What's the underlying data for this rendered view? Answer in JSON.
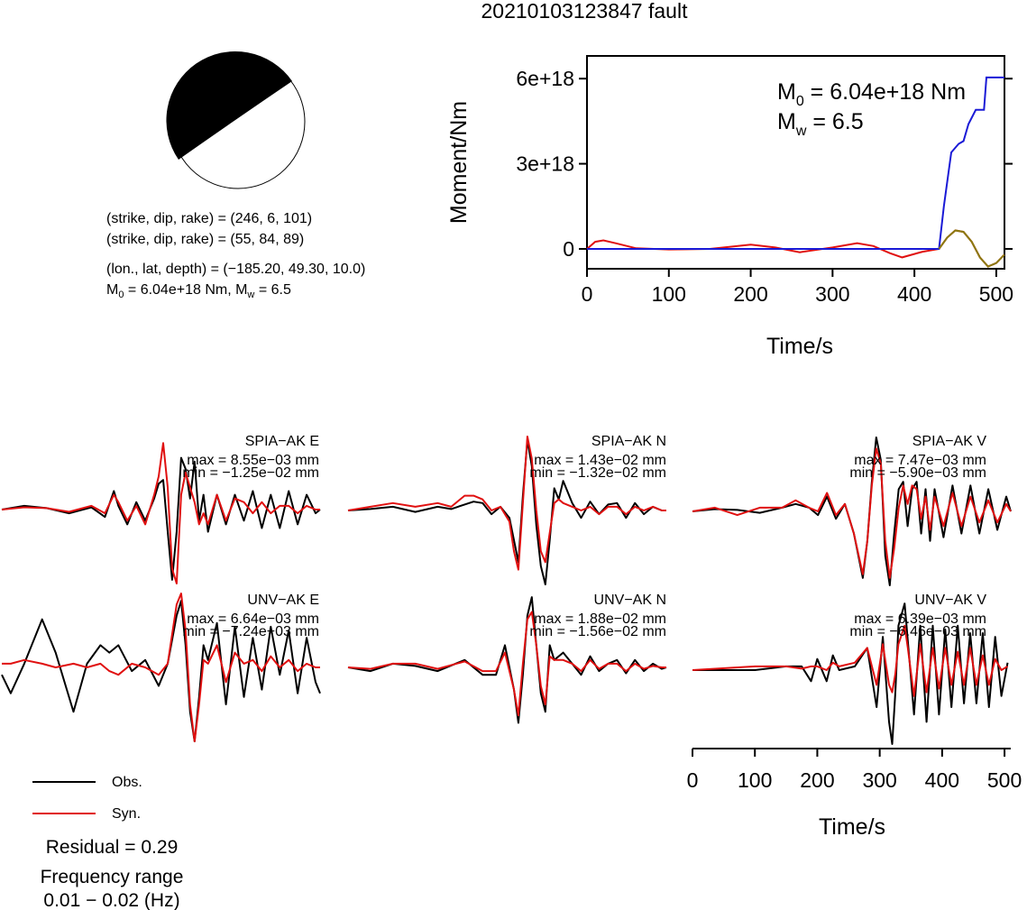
{
  "title": "20210103123847 fault",
  "focal": {
    "plane1": "(strike, dip, rake) = (246, 6, 101)",
    "plane2": "(strike, dip, rake) = (55, 84, 89)",
    "location": "(lon., lat, depth) = (−185.20, 49.30, 10.0)",
    "moment_prefix": "M",
    "moment_sub": "0",
    "moment_mid": " = 6.04e+18 Nm, M",
    "moment_sub2": "w",
    "moment_end": " = 6.5"
  },
  "moment_plot": {
    "ylabel": "Moment/Nm",
    "xlabel": "Time/s",
    "m0_prefix": "M",
    "m0_sub": "0",
    "m0_value": " = 6.04e+18 Nm",
    "mw_prefix": "M",
    "mw_sub": "w",
    "mw_value": " = 6.5"
  },
  "waveform_xlabel": "Time/s",
  "legend": {
    "obs": "Obs.",
    "syn": "Syn."
  },
  "residual": "Residual = 0.29",
  "freq_title": "Frequency range",
  "freq_value": "0.01 − 0.02 (Hz)",
  "colors": {
    "observed": "#000000",
    "synthetic": "#e01010",
    "cumulative": "#1a1ad6",
    "rate": "#8a7a10"
  },
  "chart_data": [
    {
      "type": "line",
      "title": "",
      "xlabel": "Time/s",
      "ylabel": "Moment/Nm",
      "xlim": [
        0,
        510
      ],
      "ylim": [
        -7e+17,
        6.8e+18
      ],
      "x_ticks": [
        0,
        100,
        200,
        300,
        400,
        500
      ],
      "y_ticks": [
        0,
        3e+18,
        6e+18
      ],
      "y_tick_labels": [
        "0",
        "3e+18",
        "6e+18"
      ],
      "series": [
        {
          "color": "#1a1ad6",
          "x": [
            0,
            430,
            436,
            445,
            454,
            460,
            466,
            475,
            480,
            485,
            488,
            495,
            510
          ],
          "y": [
            0,
            0,
            1.5e+18,
            3.4e+18,
            3.7e+18,
            3.8e+18,
            4.4e+18,
            4.9e+18,
            4.9e+18,
            4.9e+18,
            6.04e+18,
            6.04e+18,
            6.04e+18
          ]
        },
        {
          "color": "#e01010",
          "x": [
            0,
            10,
            20,
            35,
            60,
            100,
            150,
            200,
            230,
            260,
            300,
            330,
            350,
            370,
            385,
            410,
            430,
            440,
            450,
            460,
            470,
            480,
            490,
            500,
            510
          ],
          "y": [
            0,
            2.5e+17,
            3e+17,
            2e+17,
            2e+16,
            -2e+16,
            0,
            1.5e+17,
            5e+16,
            -1.2e+17,
            5e+16,
            2e+17,
            1e+17,
            -1.5e+17,
            -3e+17,
            -1e+17,
            0,
            4e+17,
            6.5e+17,
            6e+17,
            2.5e+17,
            -3e+17,
            -6.2e+17,
            -5e+17,
            -2e+17
          ]
        }
      ]
    },
    {
      "type": "line",
      "title": "SPIA−AK E",
      "max": "max = 8.55e−03 mm",
      "min": "min = −1.25e−02 mm",
      "x": [
        0,
        25,
        50,
        75,
        100,
        115,
        125,
        130,
        140,
        150,
        160,
        170,
        175,
        180,
        185,
        190,
        195,
        200,
        205,
        210,
        215,
        220,
        225,
        230,
        240,
        250,
        260,
        270,
        280,
        290,
        300,
        310,
        320,
        330,
        340,
        350,
        355
      ],
      "series": [
        {
          "name": "Obs.",
          "y": [
            0,
            0.05,
            0.02,
            -0.05,
            0.03,
            -0.1,
            0.25,
            0.05,
            -0.2,
            0.1,
            -0.15,
            0.15,
            0.35,
            0.4,
            -0.3,
            -0.95,
            -0.3,
            0.7,
            0.55,
            0.15,
            0.65,
            -0.15,
            0.2,
            -0.3,
            0.2,
            -0.2,
            0.2,
            -0.15,
            0.25,
            -0.25,
            0.2,
            -0.25,
            0.25,
            -0.2,
            0.2,
            -0.05,
            0
          ]
        },
        {
          "name": "Syn.",
          "y": [
            0,
            0.03,
            0.02,
            -0.03,
            0.05,
            -0.05,
            0.2,
            0.1,
            -0.15,
            0.05,
            -0.2,
            0.2,
            0.45,
            0.9,
            0.3,
            -0.8,
            -1.0,
            0.2,
            0.5,
            0.3,
            0.1,
            -0.2,
            -0.05,
            -0.2,
            0.2,
            -0.15,
            0.15,
            0.1,
            -0.05,
            0.1,
            -0.05,
            0.05,
            0.05,
            -0.05,
            0.05,
            0,
            0
          ]
        }
      ]
    },
    {
      "type": "line",
      "title": "SPIA−AK N",
      "max": "max = 1.43e−02 mm",
      "min": "min = −1.32e−02 mm",
      "x": [
        0,
        25,
        50,
        75,
        100,
        115,
        130,
        140,
        150,
        160,
        170,
        180,
        185,
        190,
        195,
        200,
        205,
        210,
        215,
        220,
        225,
        230,
        235,
        240,
        250,
        260,
        270,
        280,
        290,
        300,
        310,
        320,
        330,
        340,
        350,
        355
      ],
      "series": [
        {
          "name": "Obs.",
          "y": [
            0,
            0.02,
            0.05,
            -0.02,
            0.05,
            0.02,
            0.08,
            0.12,
            0.1,
            -0.05,
            0.05,
            -0.1,
            -0.4,
            -0.7,
            0.2,
            0.95,
            0.6,
            -0.2,
            -0.75,
            -1.0,
            -0.4,
            0.3,
            0.15,
            0.4,
            0.1,
            -0.1,
            0.12,
            -0.05,
            0.08,
            0.1,
            -0.1,
            0.1,
            -0.05,
            0.05,
            0,
            0
          ]
        },
        {
          "name": "Syn.",
          "y": [
            0,
            0.05,
            0.1,
            0.05,
            0.1,
            0.05,
            0.2,
            0.2,
            0.15,
            0,
            0.05,
            -0.15,
            -0.55,
            -0.8,
            0.1,
            1.0,
            0.7,
            0,
            -0.55,
            -0.7,
            -0.3,
            0.1,
            0.15,
            0.1,
            0.05,
            0,
            0.05,
            -0.05,
            0.05,
            0.05,
            -0.05,
            0.05,
            0,
            0.05,
            0,
            0
          ]
        }
      ]
    },
    {
      "type": "line",
      "title": "SPIA−AK V",
      "max": "max = 7.47e−03 mm",
      "min": "min = −5.90e−03 mm",
      "x": [
        0,
        25,
        50,
        75,
        100,
        115,
        130,
        140,
        150,
        160,
        170,
        180,
        190,
        195,
        200,
        205,
        210,
        215,
        220,
        225,
        230,
        235,
        240,
        245,
        250,
        255,
        260,
        265,
        270,
        280,
        290,
        300,
        310,
        320,
        330,
        340,
        350,
        355
      ],
      "series": [
        {
          "name": "Obs.",
          "y": [
            0,
            0.03,
            0.02,
            -0.02,
            0.05,
            0.1,
            0.05,
            -0.05,
            0.2,
            -0.1,
            0.1,
            -0.3,
            -0.9,
            -0.4,
            0.4,
            1.0,
            0.7,
            -0.6,
            -1.0,
            -0.3,
            0.3,
            0.4,
            -0.2,
            0.3,
            0.4,
            -0.3,
            0.3,
            -0.4,
            0.3,
            -0.35,
            0.35,
            -0.3,
            0.35,
            -0.3,
            0.3,
            -0.25,
            0.2,
            0
          ]
        },
        {
          "name": "Syn.",
          "y": [
            0,
            0.05,
            -0.05,
            0.05,
            0.05,
            0.15,
            0.05,
            0,
            0.25,
            -0.05,
            0.1,
            -0.3,
            -0.85,
            -0.4,
            0.35,
            0.85,
            0.65,
            -0.4,
            -0.9,
            -0.5,
            0.05,
            0.35,
            0.1,
            0.35,
            0.3,
            -0.1,
            0.2,
            -0.25,
            0.2,
            -0.2,
            0.25,
            -0.2,
            0.2,
            -0.15,
            0.15,
            -0.15,
            0.1,
            0
          ]
        }
      ]
    },
    {
      "type": "line",
      "title": "UNV−AK E",
      "max": "max = 6.64e−03 mm",
      "min": "min = −7.24e−03 mm",
      "x": [
        0,
        10,
        25,
        45,
        60,
        80,
        95,
        110,
        120,
        130,
        145,
        160,
        175,
        185,
        195,
        200,
        205,
        210,
        215,
        220,
        225,
        230,
        240,
        250,
        260,
        270,
        280,
        290,
        300,
        310,
        320,
        330,
        340,
        350,
        355
      ],
      "series": [
        {
          "name": "Obs.",
          "y": [
            -0.1,
            -0.35,
            0.05,
            0.65,
            0.2,
            -0.6,
            0.05,
            0.3,
            0.2,
            0.3,
            -0.05,
            0.1,
            -0.25,
            0.05,
            0.7,
            0.9,
            0.3,
            -0.6,
            -1.0,
            -0.4,
            0.3,
            0.1,
            0.6,
            -0.5,
            0.55,
            -0.4,
            0.4,
            -0.3,
            0.55,
            -0.1,
            0.5,
            -0.35,
            0.4,
            -0.2,
            -0.35
          ]
        },
        {
          "name": "Syn.",
          "y": [
            0.05,
            0.05,
            0.1,
            0.05,
            0,
            0.05,
            0,
            0.05,
            -0.05,
            -0.1,
            0.05,
            0,
            -0.1,
            0.05,
            0.85,
            1.0,
            0.5,
            -0.5,
            -1.0,
            -0.5,
            0.1,
            0.05,
            0.3,
            -0.2,
            0.2,
            0.05,
            0.1,
            -0.05,
            0.15,
            0,
            0.1,
            -0.05,
            0.05,
            0,
            0
          ]
        }
      ]
    },
    {
      "type": "line",
      "title": "UNV−AK N",
      "max": "max = 1.88e−02 mm",
      "min": "min = −1.56e−02 mm",
      "x": [
        0,
        25,
        50,
        75,
        100,
        130,
        150,
        165,
        175,
        185,
        190,
        195,
        200,
        205,
        210,
        215,
        220,
        225,
        230,
        240,
        250,
        260,
        270,
        280,
        290,
        300,
        310,
        320,
        330,
        340,
        350,
        355
      ],
      "series": [
        {
          "name": "Obs.",
          "y": [
            0,
            -0.05,
            0.05,
            0.02,
            -0.05,
            0.1,
            -0.1,
            -0.1,
            0.3,
            -0.3,
            -0.75,
            -0.1,
            0.7,
            0.95,
            0.3,
            -0.35,
            -0.6,
            0.3,
            0.1,
            0.2,
            0.05,
            -0.1,
            0.15,
            -0.05,
            0.05,
            0.1,
            -0.08,
            0.1,
            -0.05,
            0.05,
            -0.02,
            0
          ]
        },
        {
          "name": "Syn.",
          "y": [
            0,
            -0.02,
            0.05,
            0.05,
            -0.02,
            0.08,
            -0.05,
            -0.05,
            0.2,
            -0.3,
            -0.65,
            0.05,
            0.65,
            0.75,
            0.3,
            -0.25,
            -0.5,
            0.15,
            0.1,
            0.1,
            0.05,
            -0.05,
            0.1,
            -0.02,
            0.05,
            0.05,
            -0.05,
            0.05,
            -0.02,
            0.02,
            0,
            0
          ]
        }
      ]
    },
    {
      "type": "line",
      "title": "UNV−AK V",
      "xlabel": "Time/s",
      "xlim": [
        0,
        510
      ],
      "x_ticks": [
        0,
        100,
        200,
        300,
        400,
        500
      ],
      "max": "max = 6.39e−03 mm",
      "min": "min = −6.46e−03 mm",
      "x": [
        0,
        100,
        150,
        175,
        190,
        200,
        215,
        225,
        235,
        260,
        280,
        295,
        305,
        315,
        320,
        325,
        330,
        340,
        345,
        355,
        365,
        375,
        385,
        395,
        405,
        415,
        425,
        435,
        445,
        455,
        465,
        475,
        485,
        495,
        505
      ],
      "series": [
        {
          "name": "Obs.",
          "y": [
            0,
            0,
            0.05,
            0.05,
            -0.15,
            0.15,
            -0.15,
            0.2,
            0,
            0.05,
            0.3,
            -0.5,
            0.45,
            -0.7,
            -1.0,
            -0.3,
            0.6,
            0.9,
            0.4,
            -0.6,
            0.6,
            -0.7,
            0.6,
            -0.6,
            0.55,
            -0.5,
            0.6,
            -0.45,
            0.5,
            -0.45,
            0.5,
            -0.5,
            0.45,
            -0.35,
            0.1
          ]
        },
        {
          "name": "Syn.",
          "y": [
            0,
            0.05,
            0.05,
            0.02,
            0.05,
            0.05,
            0,
            0.1,
            0.05,
            0.1,
            0.3,
            -0.2,
            0.35,
            -0.2,
            -0.3,
            -0.05,
            0.35,
            0.6,
            0.3,
            -0.35,
            0.35,
            -0.3,
            0.3,
            -0.25,
            0.3,
            -0.2,
            0.25,
            -0.2,
            0.3,
            -0.2,
            0.2,
            -0.2,
            0.15,
            0,
            0.05
          ]
        }
      ]
    }
  ]
}
